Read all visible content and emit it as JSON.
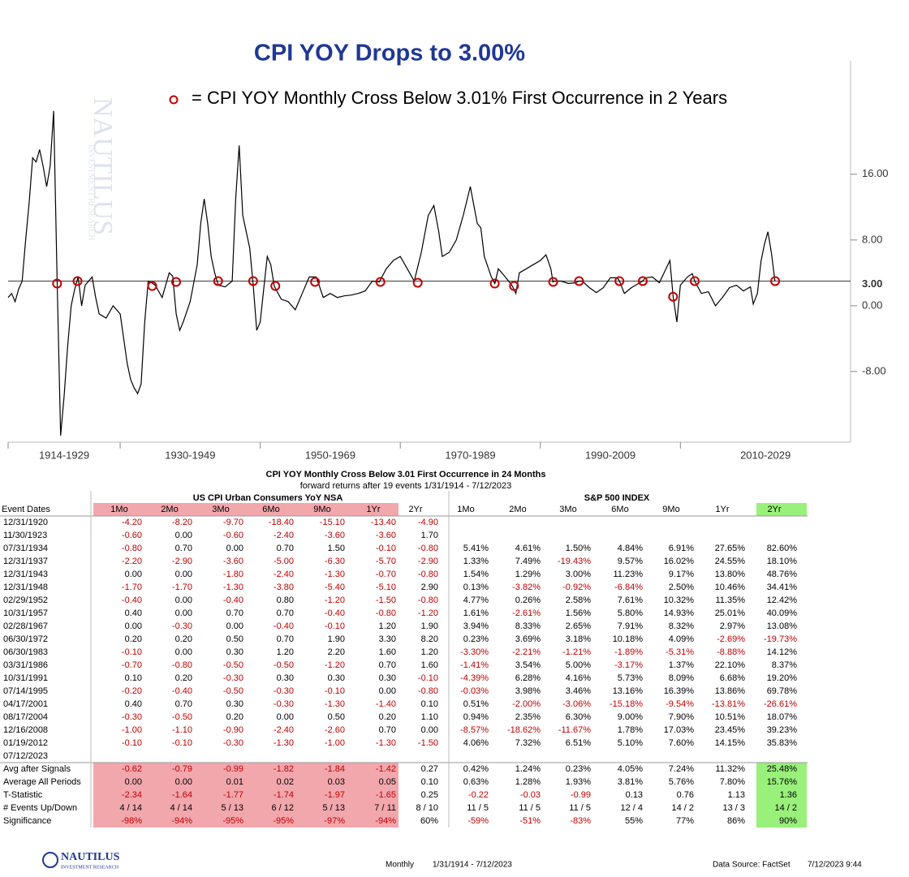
{
  "chart_data": {
    "type": "line",
    "title": "CPI YOY Drops to 3.00%",
    "color": "#000000",
    "xlim": [
      1914,
      2034.3
    ],
    "ylim": [
      -16.6,
      29.8
    ],
    "xticks": [
      {
        "value": 1914,
        "label": "1914-1929"
      },
      {
        "value": 1930,
        "label": "1930-1949"
      },
      {
        "value": 1950,
        "label": "1950-1969"
      },
      {
        "value": 1970,
        "label": "1970-1989"
      },
      {
        "value": 1990,
        "label": "1990-2009"
      },
      {
        "value": 2010,
        "label": "2010-2029"
      }
    ],
    "yticks": [
      {
        "value": 16,
        "label": "16.00"
      },
      {
        "value": 8,
        "label": "8.00"
      },
      {
        "value": 0,
        "label": "0.00"
      },
      {
        "value": -8,
        "label": "-8.00"
      }
    ],
    "ref_line": {
      "value": 3,
      "label": "3.00",
      "color": "#555555"
    },
    "x": [
      1914,
      1914.5,
      1915,
      1915.5,
      1916,
      1916.5,
      1917,
      1917.5,
      1918,
      1918.5,
      1919,
      1919.5,
      1920,
      1920.5,
      1921,
      1921.5,
      1922,
      1922.5,
      1923,
      1923.5,
      1924,
      1924.5,
      1925,
      1926,
      1926.5,
      1927,
      1928,
      1929,
      1930,
      1930.5,
      1931,
      1931.5,
      1932,
      1932.5,
      1933,
      1933.5,
      1934,
      1934.5,
      1935,
      1936,
      1937,
      1937.5,
      1938,
      1938.5,
      1939,
      1940,
      1941,
      1941.5,
      1942,
      1942.5,
      1943,
      1943.5,
      1944,
      1945,
      1946,
      1946.5,
      1947,
      1947.5,
      1948,
      1948.5,
      1949,
      1949.5,
      1950,
      1950.5,
      1951,
      1951.5,
      1952,
      1953,
      1954,
      1955,
      1956,
      1957,
      1958,
      1959,
      1960,
      1961,
      1962,
      1963,
      1964,
      1965,
      1966,
      1967,
      1968,
      1969,
      1970,
      1971,
      1972,
      1973,
      1974,
      1974.8,
      1975.5,
      1976,
      1977,
      1978,
      1979,
      1980,
      1981,
      1981.5,
      1982,
      1983,
      1983.5,
      1984,
      1985,
      1986,
      1986.5,
      1987,
      1988,
      1989,
      1990,
      1990.8,
      1991.5,
      1991.8,
      1992,
      1993,
      1994,
      1995,
      1995.5,
      1996,
      1997,
      1998,
      1999,
      2000,
      2001,
      2001.3,
      2002,
      2003,
      2004,
      2004.6,
      2005,
      2006,
      2007,
      2008.5,
      2008.96,
      2009.5,
      2010,
      2011,
      2011.7,
      2012.05,
      2013,
      2014,
      2015,
      2016,
      2017,
      2018,
      2019,
      2020,
      2020.4,
      2021,
      2021.5,
      2022,
      2022.5,
      2023,
      2023.5
    ],
    "values": [
      1.0,
      1.5,
      0.5,
      2,
      3,
      8,
      12.5,
      18,
      17.5,
      19,
      17,
      14.5,
      17,
      23.7,
      3,
      -15.8,
      -11,
      -5,
      0,
      2,
      3.5,
      0,
      2.5,
      3.5,
      1,
      -1,
      -1.5,
      0,
      -1,
      -4,
      -7,
      -9,
      -10,
      -10.7,
      -9.5,
      -2,
      3,
      2.8,
      2.5,
      1,
      4,
      3.6,
      -1,
      -3,
      -2,
      0.5,
      5,
      10,
      13,
      10,
      6,
      4,
      2.5,
      2.3,
      3,
      13,
      19.5,
      11,
      9,
      7,
      2.5,
      -3,
      -2,
      2,
      6,
      5,
      2.4,
      0.8,
      0.5,
      -0.5,
      1.5,
      3.5,
      3.5,
      1,
      1.5,
      1,
      1.2,
      1.3,
      1.5,
      1.8,
      3,
      2.9,
      4.5,
      5.5,
      6,
      4.5,
      3,
      6.5,
      11,
      12.2,
      9,
      6,
      6.5,
      8,
      11,
      14.5,
      10,
      9.5,
      6,
      3.5,
      2.7,
      4.5,
      3.5,
      2.4,
      1.5,
      4,
      4.5,
      5,
      5.5,
      6.2,
      4.5,
      2.9,
      3,
      3,
      2.7,
      2.8,
      3.0,
      3,
      2.2,
      1.6,
      2.2,
      3.4,
      3.4,
      3.0,
      1.5,
      2.2,
      2.7,
      3.0,
      3.4,
      3.5,
      2.8,
      5.5,
      1.1,
      -2,
      2.5,
      3.5,
      3.9,
      3.0,
      1.5,
      1.7,
      0,
      1,
      2.2,
      2.5,
      1.8,
      2.3,
      0.2,
      1.5,
      5.4,
      7.5,
      9,
      6.4,
      3.0
    ],
    "markers": {
      "name": "= CPI YOY Monthly Cross Below 3.01% First Occurrence in 2 Years",
      "color": "#c00000",
      "x": [
        1920.99,
        1923.91,
        1934.58,
        1937.99,
        1943.99,
        1948.99,
        1952.16,
        1957.83,
        1967.16,
        1972.49,
        1983.49,
        1986.24,
        1991.83,
        1995.53,
        2001.29,
        2004.63,
        2008.96,
        2012.05,
        2023.53
      ],
      "values": [
        2.7,
        3.0,
        2.4,
        2.9,
        3.0,
        3.0,
        2.4,
        2.9,
        2.9,
        2.8,
        2.7,
        2.4,
        2.9,
        3.0,
        3.0,
        3.0,
        1.1,
        3.0,
        3.0
      ]
    }
  },
  "watermark": {
    "name": "NAUTILUS",
    "sub": "INVESTMENT RESEARCH"
  },
  "table": {
    "title": "CPI YOY Monthly Cross Below 3.01 First Occurrence in 24 Months",
    "subtitle": "forward returns after 19 events 1/31/1914 - 7/12/2023",
    "groups": [
      "US CPI Urban Consumers YoY NSA",
      "S&P 500 INDEX"
    ],
    "columns": [
      "Event Dates",
      "1Mo",
      "2Mo",
      "3Mo",
      "6Mo",
      "9Mo",
      "1Yr",
      "2Yr",
      "1Mo",
      "2Mo",
      "3Mo",
      "6Mo",
      "9Mo",
      "1Yr",
      "2Yr"
    ],
    "rows": [
      [
        "12/31/1920",
        "-4.20",
        "-8.20",
        "-9.70",
        "-18.40",
        "-15.10",
        "-13.40",
        "-4.90"
      ],
      [
        "11/30/1923",
        "-0.60",
        "0.00",
        "-0.60",
        "-2.40",
        "-3.60",
        "-3.60",
        "1.70"
      ],
      [
        "07/31/1934",
        "-0.80",
        "0.70",
        "0.00",
        "0.70",
        "1.50",
        "-0.10",
        "-0.80",
        "5.41%",
        "4.61%",
        "1.50%",
        "4.84%",
        "6.91%",
        "27.65%",
        "82.60%"
      ],
      [
        "12/31/1937",
        "-2.20",
        "-2.90",
        "-3.60",
        "-5.00",
        "-6.30",
        "-5.70",
        "-2.90",
        "1.33%",
        "7.49%",
        "-19.43%",
        "9.57%",
        "16.02%",
        "24.55%",
        "18.10%"
      ],
      [
        "12/31/1943",
        "0.00",
        "0.00",
        "-1.80",
        "-2.40",
        "-1.30",
        "-0.70",
        "-0.80",
        "1.54%",
        "1.29%",
        "3.00%",
        "11.23%",
        "9.17%",
        "13.80%",
        "48.76%"
      ],
      [
        "12/31/1948",
        "-1.70",
        "-1.70",
        "-1.30",
        "-3.80",
        "-5.40",
        "-5.10",
        "2.90",
        "0.13%",
        "-3.82%",
        "-0.92%",
        "-6.84%",
        "2.50%",
        "10.46%",
        "34.41%"
      ],
      [
        "02/29/1952",
        "-0.40",
        "0.00",
        "-0.40",
        "0.80",
        "-1.20",
        "-1.50",
        "-0.80",
        "4.77%",
        "0.26%",
        "2.58%",
        "7.61%",
        "10.32%",
        "11.35%",
        "12.42%"
      ],
      [
        "10/31/1957",
        "0.40",
        "0.00",
        "0.70",
        "0.70",
        "-0.40",
        "-0.80",
        "-1.20",
        "1.61%",
        "-2.61%",
        "1.56%",
        "5.80%",
        "14.93%",
        "25.01%",
        "40.09%"
      ],
      [
        "02/28/1967",
        "0.00",
        "-0.30",
        "0.00",
        "-0.40",
        "-0.10",
        "1.20",
        "1.90",
        "3.94%",
        "8.33%",
        "2.65%",
        "7.91%",
        "8.32%",
        "2.97%",
        "13.08%"
      ],
      [
        "06/30/1972",
        "0.20",
        "0.20",
        "0.50",
        "0.70",
        "1.90",
        "3.30",
        "8.20",
        "0.23%",
        "3.69%",
        "3.18%",
        "10.18%",
        "4.09%",
        "-2.69%",
        "-19.73%"
      ],
      [
        "06/30/1983",
        "-0.10",
        "0.00",
        "0.30",
        "1.20",
        "2.20",
        "1.60",
        "1.20",
        "-3.30%",
        "-2.21%",
        "-1.21%",
        "-1.89%",
        "-5.31%",
        "-8.88%",
        "14.12%"
      ],
      [
        "03/31/1986",
        "-0.70",
        "-0.80",
        "-0.50",
        "-0.50",
        "-1.20",
        "0.70",
        "1.60",
        "-1.41%",
        "3.54%",
        "5.00%",
        "-3.17%",
        "1.37%",
        "22.10%",
        "8.37%"
      ],
      [
        "10/31/1991",
        "0.10",
        "0.20",
        "-0.30",
        "0.30",
        "0.30",
        "0.30",
        "-0.10",
        "-4.39%",
        "6.28%",
        "4.16%",
        "5.73%",
        "8.09%",
        "6.68%",
        "19.20%"
      ],
      [
        "07/14/1995",
        "-0.20",
        "-0.40",
        "-0.50",
        "-0.30",
        "-0.10",
        "0.00",
        "-0.80",
        "-0.03%",
        "3.98%",
        "3.46%",
        "13.16%",
        "16.39%",
        "13.86%",
        "69.78%"
      ],
      [
        "04/17/2001",
        "0.40",
        "0.70",
        "0.30",
        "-0.30",
        "-1.30",
        "-1.40",
        "0.10",
        "0.51%",
        "-2.00%",
        "-3.06%",
        "-15.18%",
        "-9.54%",
        "-13.81%",
        "-26.61%"
      ],
      [
        "08/17/2004",
        "-0.30",
        "-0.50",
        "0.20",
        "0.00",
        "0.50",
        "0.20",
        "1.10",
        "0.94%",
        "2.35%",
        "6.30%",
        "9.00%",
        "7.90%",
        "10.51%",
        "18.07%"
      ],
      [
        "12/16/2008",
        "-1.00",
        "-1.10",
        "-0.90",
        "-2.40",
        "-2.60",
        "0.70",
        "0.00",
        "-8.57%",
        "-18.62%",
        "-11.67%",
        "1.78%",
        "17.03%",
        "23.45%",
        "39.23%"
      ],
      [
        "01/19/2012",
        "-0.10",
        "-0.10",
        "-0.30",
        "-1.30",
        "-1.00",
        "-1.30",
        "-1.50",
        "4.06%",
        "7.32%",
        "6.51%",
        "5.10%",
        "7.60%",
        "14.15%",
        "35.83%"
      ],
      [
        "07/12/2023"
      ]
    ],
    "summary_rows": [
      [
        "Avg after Signals",
        "-0.62",
        "-0.79",
        "-0.99",
        "-1.82",
        "-1.84",
        "-1.42",
        "0.27",
        "0.42%",
        "1.24%",
        "0.23%",
        "4.05%",
        "7.24%",
        "11.32%",
        "25.48%"
      ],
      [
        "Average All Periods",
        "0.00",
        "0.00",
        "0.01",
        "0.02",
        "0.03",
        "0.05",
        "0.10",
        "0.63%",
        "1.28%",
        "1.93%",
        "3.81%",
        "5.76%",
        "7.80%",
        "15.76%"
      ],
      [
        "T-Statistic",
        "-2.34",
        "-1.64",
        "-1.77",
        "-1.74",
        "-1.97",
        "-1.65",
        "0.25",
        "-0.22",
        "-0.03",
        "-0.99",
        "0.13",
        "0.76",
        "1.13",
        "1.36"
      ],
      [
        "# Events Up/Down",
        "4 / 14",
        "4 / 14",
        "5 / 13",
        "6 / 12",
        "5 / 13",
        "7 / 11",
        "8 / 10",
        "11 / 5",
        "11 / 5",
        "11 / 5",
        "12 / 4",
        "14 / 2",
        "13 / 3",
        "14 / 2"
      ],
      [
        "Significance",
        "-98%",
        "-94%",
        "-95%",
        "-95%",
        "-97%",
        "-94%",
        "60%",
        "-59%",
        "-51%",
        "-83%",
        "55%",
        "77%",
        "86%",
        "90%"
      ]
    ]
  },
  "footer": {
    "logo": "NAUTILUS",
    "logo_sub": "INVESTMENT RESEARCH",
    "frequency": "Monthly",
    "range": "1/31/1914 - 7/12/2023",
    "source": "Data Source: FactSet",
    "timestamp": "7/12/2023 9:44"
  }
}
